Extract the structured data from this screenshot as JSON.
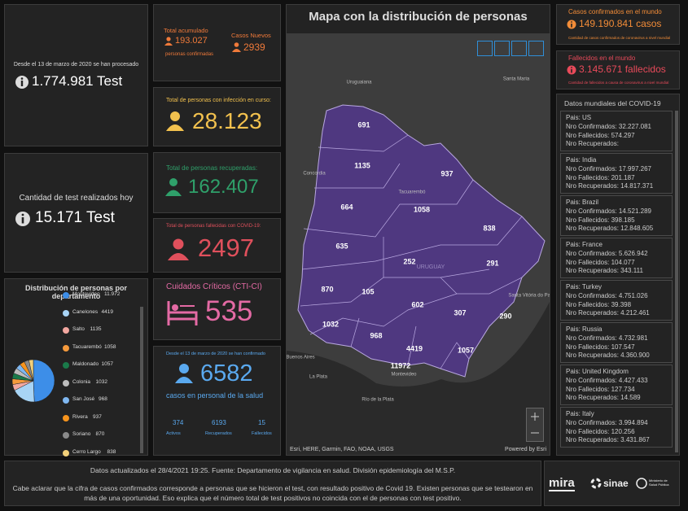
{
  "tests": {
    "caption": "Desde el 13 de marzo de 2020 se han procesado",
    "value": "1.774.981 Test"
  },
  "tests_today": {
    "caption": "Cantidad de test realizados hoy",
    "value": "15.171 Test"
  },
  "departments": {
    "title": "Distribución de personas por departamento",
    "items": [
      {
        "name": "Montevideo",
        "value": 11972,
        "value_label": "11.972",
        "color": "#3d8ee8"
      },
      {
        "name": "Canelones",
        "value": 4419,
        "color": "#a8d4f5"
      },
      {
        "name": "Salto",
        "value": 1135,
        "color": "#f2a7a0"
      },
      {
        "name": "Tacuarembó",
        "value": 1058,
        "color": "#f59a3c"
      },
      {
        "name": "Maldonado",
        "value": 1057,
        "color": "#1a7a4a"
      },
      {
        "name": "Colonia",
        "value": 1032,
        "color": "#bdbdbd"
      },
      {
        "name": "San José",
        "value": 968,
        "color": "#7fb7f0"
      },
      {
        "name": "Rivera",
        "value": 937,
        "color": "#f7941d"
      },
      {
        "name": "Soriano",
        "value": 870,
        "color": "#8a8a8a"
      },
      {
        "name": "Cerro Largo",
        "value": 838,
        "color": "#f2d07a"
      }
    ]
  },
  "accumulated": {
    "title": "Total acumulado",
    "value": "193.027",
    "caption": "personas confirmadas",
    "new_title": "Casos Nuevos",
    "new_value": "2939"
  },
  "active": {
    "caption": "Total de personas con infección en curso:",
    "value": "28.123"
  },
  "recovered": {
    "caption": "Total de personas recuperadas:",
    "value": "162.407"
  },
  "deceased": {
    "caption": "Total de personas fallecidas con COVID-19:",
    "value": "2497"
  },
  "critical": {
    "caption": "Cuidados Críticos (CTI-CI)",
    "value": "535"
  },
  "health_staff": {
    "caption": "Desde el 13 de marzo de 2020 se han confirmado",
    "value": "6582",
    "subtitle": "casos en personal de la salud",
    "stats": [
      {
        "value": "374",
        "label": "Activos"
      },
      {
        "value": "6193",
        "label": "Recuperados"
      },
      {
        "value": "15",
        "label": "Fallecidos"
      }
    ]
  },
  "map": {
    "title": "Mapa con la distribución de personas",
    "regions": [
      691,
      1135,
      937,
      664,
      1058,
      838,
      635,
      252,
      291,
      870,
      105,
      602,
      307,
      290,
      1032,
      968,
      4419,
      1057,
      11972
    ],
    "places": [
      "Uruguaiana",
      "Santa Maria",
      "Concordia",
      "Tacuarembó",
      "URUGUAY",
      "Buenos Aires",
      "La Plata",
      "Río de la Plata",
      "Montevideo",
      "Santa Vitória do Palmar"
    ],
    "attribution": "Esri, HERE, Garmin, FAO, NOAA, USGS",
    "powered": "Powered by Esri"
  },
  "world_confirmed": {
    "title": "Casos confirmados en el mundo",
    "value": "149.190.841 casos",
    "caption": "Cantidad de casos confirmados de coronavirus a nivel mundial"
  },
  "world_deaths": {
    "title": "Fallecidos en el mundo",
    "value": "3.145.671 fallecidos",
    "caption": "Cantidad de fallecidos a causa de coronavirus a nivel mundial"
  },
  "world_list": {
    "title": "Datos mundiales del COVID-19",
    "labels": {
      "country": "Pais:",
      "confirmed": "Nro Confirmados:",
      "deaths": "Nro Fallecidos:",
      "recovered": "Nro Recuperados:"
    },
    "countries": [
      {
        "country": "US",
        "confirmed": "32.227.081",
        "deaths": "574.297"
      },
      {
        "country": "India",
        "confirmed": "17.997.267",
        "deaths": "201.187",
        "recovered": "14.817.371"
      },
      {
        "country": "Brazil",
        "confirmed": "14.521.289",
        "deaths": "398.185",
        "recovered": "12.848.605"
      },
      {
        "country": "France",
        "confirmed": "5.626.942",
        "deaths": "104.077",
        "recovered": "343.111"
      },
      {
        "country": "Turkey",
        "confirmed": "4.751.026",
        "deaths": "39.398",
        "recovered": "4.212.461"
      },
      {
        "country": "Russia",
        "confirmed": "4.732.981",
        "deaths": "107.547",
        "recovered": "4.360.900"
      },
      {
        "country": "United Kingdom",
        "confirmed": "4.427.433",
        "deaths": "127.734",
        "recovered": "14.589"
      },
      {
        "country": "Italy",
        "confirmed": "3.994.894",
        "deaths": "120.256",
        "recovered": "3.431.867"
      }
    ]
  },
  "footer": {
    "updated": "Datos actualizados el 28/4/2021 19:25. Fuente: Departamento de vigilancia en salud. División epidemiología del M.S.P.",
    "note": "Cabe aclarar que la cifra de casos confirmados corresponde a personas que se hicieron el test, con resultado positivo de Covid 19. Existen personas que se testearon en más de una oportunidad. Eso explica que el número total de test positivos no coincida con el de personas con test positivo."
  },
  "logos": [
    "mira",
    "sinae",
    "Ministerio de Salud Pública"
  ]
}
